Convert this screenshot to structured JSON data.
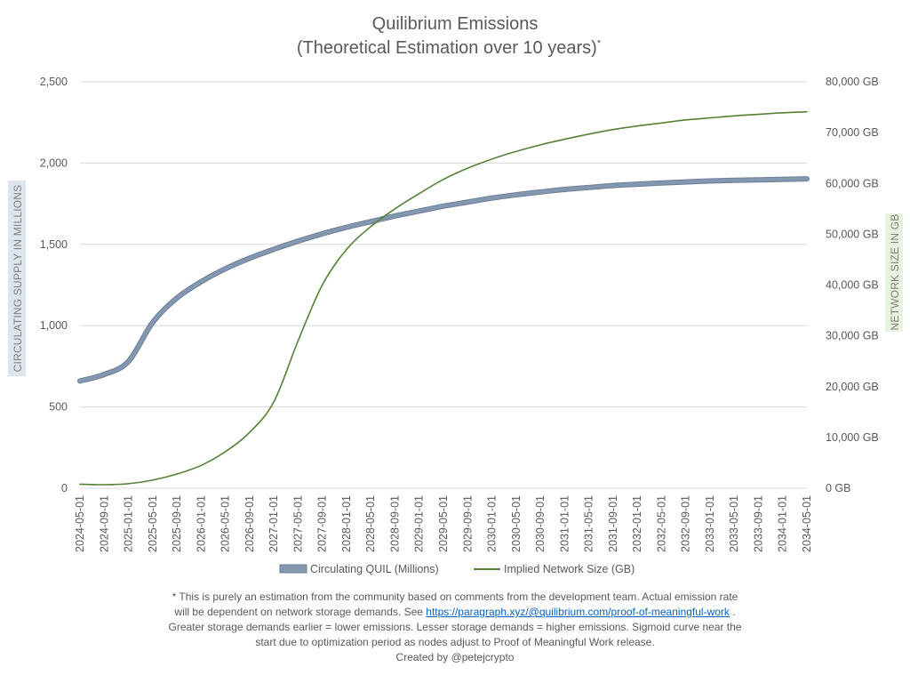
{
  "chart_data": {
    "type": "line",
    "title": "Quilibrium Emissions",
    "subtitle": "(Theoretical Estimation over 10 years)",
    "subtitle_mark": "*",
    "ylabel": "CIRCULATING SUPPLY IN MILLIONS",
    "y2label": "NETWORK SIZE IN GB",
    "ylim": [
      0,
      2500
    ],
    "y2lim": [
      0,
      80000
    ],
    "yticks": [
      "0",
      "500",
      "1,000",
      "1,500",
      "2,000",
      "2,500"
    ],
    "y2ticks": [
      "0 GB",
      "10,000 GB",
      "20,000 GB",
      "30,000 GB",
      "40,000 GB",
      "50,000 GB",
      "60,000 GB",
      "70,000 GB",
      "80,000 GB"
    ],
    "grid": true,
    "legend_position": "bottom",
    "x": [
      "2024-05-01",
      "2024-09-01",
      "2025-01-01",
      "2025-05-01",
      "2025-09-01",
      "2026-01-01",
      "2026-05-01",
      "2026-09-01",
      "2027-01-01",
      "2027-05-01",
      "2027-09-01",
      "2028-01-01",
      "2028-05-01",
      "2028-09-01",
      "2029-01-01",
      "2029-05-01",
      "2029-09-01",
      "2030-01-01",
      "2030-05-01",
      "2030-09-01",
      "2031-01-01",
      "2031-05-01",
      "2031-09-01",
      "2032-01-01",
      "2032-05-01",
      "2032-09-01",
      "2033-01-01",
      "2033-05-01",
      "2033-09-01",
      "2034-01-01",
      "2034-05-01"
    ],
    "series": [
      {
        "name": "Circulating QUIL (Millions)",
        "axis": "left",
        "color": "#8497b0",
        "values": [
          660,
          700,
          780,
          1020,
          1170,
          1270,
          1350,
          1415,
          1470,
          1520,
          1565,
          1605,
          1640,
          1675,
          1705,
          1735,
          1760,
          1785,
          1805,
          1822,
          1838,
          1850,
          1862,
          1870,
          1878,
          1884,
          1890,
          1894,
          1897,
          1900,
          1903
        ]
      },
      {
        "name": "Implied Network Size (GB)",
        "axis": "right",
        "color": "#548235",
        "values": [
          800,
          700,
          900,
          1600,
          2800,
          4500,
          7200,
          11000,
          17000,
          29000,
          40000,
          47000,
          51500,
          55000,
          58000,
          60800,
          63000,
          64800,
          66300,
          67600,
          68700,
          69700,
          70600,
          71300,
          71900,
          72500,
          72900,
          73300,
          73600,
          73900,
          74100
        ]
      }
    ]
  },
  "footnote": {
    "line1": "* This is purely an estimation from the community based on comments from the development team. Actual emission rate",
    "line2_pre": "will be dependent on network storage demands. See ",
    "link": "https://paragraph.xyz/@quilibrium.com/proof-of-meaningful-work",
    "line2_post": " .",
    "line3": "Greater storage demands earlier = lower emissions. Lesser storage demands = higher emissions. Sigmoid curve near the",
    "line4": "start due to optimization period as nodes adjust to Proof of Meaningful Work release.",
    "credit": "Created by @petejcrypto"
  }
}
